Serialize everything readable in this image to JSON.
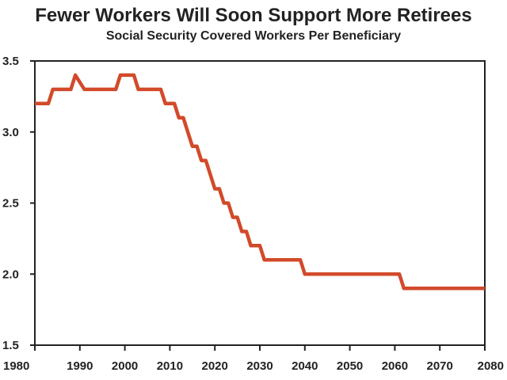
{
  "chart_data": {
    "type": "line",
    "title": "Fewer Workers Will Soon Support More Retirees",
    "subtitle": "Social Security Covered Workers Per Beneficiary",
    "xlabel": "",
    "ylabel": "",
    "xlim": [
      1980,
      2080
    ],
    "ylim": [
      1.5,
      3.5
    ],
    "x_ticks": [
      1980,
      1990,
      2000,
      2010,
      2020,
      2030,
      2040,
      2050,
      2060,
      2070,
      2080
    ],
    "y_ticks": [
      1.5,
      2.0,
      2.5,
      3.0,
      3.5
    ],
    "x_tick_labels": [
      "1980",
      "1990",
      "2000",
      "2010",
      "2020",
      "2030",
      "2040",
      "2050",
      "2060",
      "2070",
      "2080"
    ],
    "y_tick_labels": [
      "1.5",
      "2.0",
      "2.5",
      "3.0",
      "3.5"
    ],
    "grid": false,
    "legend": "none",
    "line_color": "#d24a2a",
    "series": [
      {
        "x": [
          1980,
          1983,
          1984,
          1988,
          1989,
          1991,
          1998,
          1999,
          2002,
          2003,
          2008,
          2009,
          2011,
          2012,
          2013,
          2014,
          2015,
          2016,
          2017,
          2018,
          2019,
          2020,
          2021,
          2022,
          2023,
          2024,
          2025,
          2026,
          2027,
          2028,
          2030,
          2031,
          2039,
          2040,
          2061,
          2062,
          2080
        ],
        "y": [
          3.2,
          3.2,
          3.3,
          3.3,
          3.4,
          3.3,
          3.3,
          3.4,
          3.4,
          3.3,
          3.3,
          3.2,
          3.2,
          3.1,
          3.1,
          3.0,
          2.9,
          2.9,
          2.8,
          2.8,
          2.7,
          2.6,
          2.6,
          2.5,
          2.5,
          2.4,
          2.4,
          2.3,
          2.3,
          2.2,
          2.2,
          2.1,
          2.1,
          2.0,
          2.0,
          1.9,
          1.9
        ]
      }
    ]
  }
}
